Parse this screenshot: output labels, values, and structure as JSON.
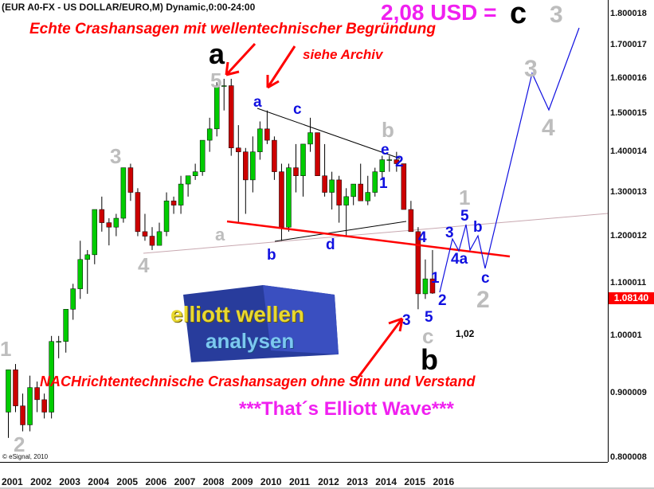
{
  "header": {
    "title": "(EUR A0-FX - US DOLLAR/EURO,M) Dynamic,0:00-24:00",
    "copyright": "© eSignal, 2010"
  },
  "chart_data": {
    "type": "candlestick",
    "title": "(EUR A0-FX - US DOLLAR/EURO,M) Dynamic,0:00-24:00",
    "yscale": "log",
    "ylim": [
      0.8,
      1.8
    ],
    "y_ticks": [
      "1.800018",
      "1.700017",
      "1.600016",
      "1.500015",
      "1.400014",
      "1.300013",
      "1.200012",
      "1.100011",
      "1.00001",
      "0.900009",
      "0.800008"
    ],
    "x_ticks": [
      "2001",
      "2002",
      "2003",
      "2004",
      "2005",
      "2006",
      "2007",
      "2008",
      "2009",
      "2010",
      "2011",
      "2012",
      "2013",
      "2014",
      "2015",
      "2016"
    ],
    "last_price": "1.08140",
    "last_price_color": "#ff0000",
    "up_color": "#00cc00",
    "down_color": "#cc0000",
    "candle_period": "quarter (approximated)",
    "start": "2000-Q4",
    "ohlc": [
      [
        0.87,
        0.94,
        0.83,
        0.94
      ],
      [
        0.94,
        0.95,
        0.87,
        0.88
      ],
      [
        0.88,
        0.9,
        0.84,
        0.85
      ],
      [
        0.85,
        0.93,
        0.84,
        0.91
      ],
      [
        0.91,
        0.92,
        0.87,
        0.89
      ],
      [
        0.89,
        0.9,
        0.86,
        0.87
      ],
      [
        0.87,
        1.0,
        0.86,
        0.99
      ],
      [
        0.99,
        1.0,
        0.96,
        0.99
      ],
      [
        0.99,
        1.05,
        0.97,
        1.05
      ],
      [
        1.05,
        1.1,
        1.03,
        1.09
      ],
      [
        1.09,
        1.19,
        1.07,
        1.15
      ],
      [
        1.15,
        1.17,
        1.08,
        1.16
      ],
      [
        1.16,
        1.26,
        1.14,
        1.26
      ],
      [
        1.26,
        1.29,
        1.21,
        1.23
      ],
      [
        1.23,
        1.24,
        1.18,
        1.22
      ],
      [
        1.22,
        1.25,
        1.2,
        1.24
      ],
      [
        1.24,
        1.36,
        1.23,
        1.36
      ],
      [
        1.36,
        1.37,
        1.28,
        1.3
      ],
      [
        1.3,
        1.31,
        1.2,
        1.21
      ],
      [
        1.21,
        1.25,
        1.19,
        1.2
      ],
      [
        1.2,
        1.22,
        1.17,
        1.18
      ],
      [
        1.18,
        1.23,
        1.18,
        1.21
      ],
      [
        1.21,
        1.3,
        1.2,
        1.28
      ],
      [
        1.28,
        1.29,
        1.25,
        1.27
      ],
      [
        1.27,
        1.34,
        1.25,
        1.32
      ],
      [
        1.32,
        1.34,
        1.29,
        1.34
      ],
      [
        1.34,
        1.37,
        1.33,
        1.35
      ],
      [
        1.35,
        1.43,
        1.34,
        1.43
      ],
      [
        1.43,
        1.49,
        1.4,
        1.46
      ],
      [
        1.46,
        1.59,
        1.44,
        1.58
      ],
      [
        1.58,
        1.6,
        1.51,
        1.58
      ],
      [
        1.58,
        1.6,
        1.39,
        1.41
      ],
      [
        1.41,
        1.47,
        1.23,
        1.4
      ],
      [
        1.4,
        1.41,
        1.25,
        1.33
      ],
      [
        1.33,
        1.44,
        1.3,
        1.4
      ],
      [
        1.4,
        1.48,
        1.38,
        1.46
      ],
      [
        1.46,
        1.51,
        1.42,
        1.43
      ],
      [
        1.43,
        1.44,
        1.33,
        1.35
      ],
      [
        1.35,
        1.37,
        1.19,
        1.22
      ],
      [
        1.22,
        1.37,
        1.21,
        1.36
      ],
      [
        1.36,
        1.42,
        1.3,
        1.34
      ],
      [
        1.34,
        1.42,
        1.29,
        1.42
      ],
      [
        1.42,
        1.49,
        1.4,
        1.45
      ],
      [
        1.45,
        1.45,
        1.34,
        1.34
      ],
      [
        1.34,
        1.42,
        1.29,
        1.3
      ],
      [
        1.3,
        1.35,
        1.26,
        1.33
      ],
      [
        1.33,
        1.34,
        1.23,
        1.27
      ],
      [
        1.27,
        1.31,
        1.2,
        1.29
      ],
      [
        1.29,
        1.32,
        1.27,
        1.32
      ],
      [
        1.32,
        1.37,
        1.28,
        1.28
      ],
      [
        1.28,
        1.34,
        1.27,
        1.3
      ],
      [
        1.3,
        1.36,
        1.29,
        1.35
      ],
      [
        1.35,
        1.39,
        1.33,
        1.38
      ],
      [
        1.38,
        1.39,
        1.35,
        1.38
      ],
      [
        1.38,
        1.4,
        1.35,
        1.37
      ],
      [
        1.37,
        1.37,
        1.26,
        1.26
      ],
      [
        1.26,
        1.28,
        1.21,
        1.21
      ],
      [
        1.21,
        1.22,
        1.05,
        1.08
      ],
      [
        1.08,
        1.15,
        1.07,
        1.11
      ],
      [
        1.11,
        1.17,
        1.08,
        1.0814
      ]
    ]
  },
  "annotations": {
    "target": "2,08 USD =",
    "target_c": "c",
    "target_3": "3",
    "headline": "Echte Crashansagen mit wellentechnischer Begründung",
    "archive": "siehe Archiv",
    "bottom_headline": "NACHrichtentechnische Crashansagen ohne Sinn und Verstand",
    "slogan": "***That´s Elliott Wave***",
    "value_102": "1,02",
    "black_a": "a",
    "black_b": "b",
    "blue": [
      "a",
      "c",
      "e",
      "2",
      "1",
      "4",
      "3",
      "5",
      "b",
      "4a",
      "1",
      "2",
      "5",
      "3",
      "c",
      "b",
      "d"
    ],
    "gray": [
      "5",
      "b",
      "1",
      "2",
      "c",
      "a",
      "4",
      "3",
      "1",
      "2",
      "3",
      "4"
    ]
  },
  "logo": {
    "text": "elliott wellen analysen"
  }
}
